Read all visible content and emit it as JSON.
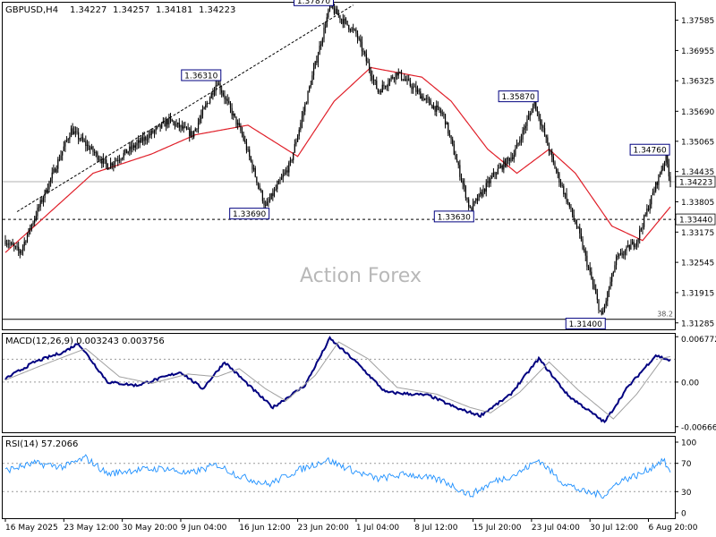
{
  "chart_data": [
    {
      "type": "candlestick",
      "panel": "price",
      "symbol_header": "GBPUSD,H4",
      "ohlc_header": [
        "1.34227",
        "1.34257",
        "1.34181",
        "1.34223"
      ],
      "watermark": "Action Forex",
      "ylim": [
        1.3115,
        1.3795
      ],
      "y_ticks": [
        "1.37585",
        "1.36955",
        "1.36325",
        "1.35690",
        "1.35065",
        "1.34435",
        "1.33805",
        "1.33175",
        "1.32545",
        "1.31915",
        "1.31285"
      ],
      "current_price_label": "1.34223",
      "current_price": 1.34223,
      "hline_price_label": "1.33440",
      "hline_price": 1.3344,
      "fib_label": "38.2",
      "fib_price": 1.3136,
      "x_ticks": [
        "16 May 2025",
        "23 May 12:00",
        "30 May 20:00",
        "9 Jun 04:00",
        "16 Jun 12:00",
        "23 Jun 20:00",
        "1 Jul 04:00",
        "8 Jul 12:00",
        "15 Jul 20:00",
        "23 Jul 04:00",
        "30 Jul 12:00",
        "6 Aug 20:00"
      ],
      "x_tick_bar_index": [
        0,
        40,
        80,
        120,
        160,
        200,
        240,
        280,
        320,
        360,
        400,
        440
      ],
      "bar_count": 456,
      "pivots": [
        {
          "bar": 0,
          "price": 1.33
        },
        {
          "bar": 10,
          "price": 1.3275
        },
        {
          "bar": 45,
          "price": 1.353
        },
        {
          "bar": 70,
          "price": 1.3455
        },
        {
          "bar": 112,
          "price": 1.355
        },
        {
          "bar": 128,
          "price": 1.352
        },
        {
          "bar": 145,
          "price": 1.3631,
          "label": "1.36310"
        },
        {
          "bar": 162,
          "price": 1.352
        },
        {
          "bar": 178,
          "price": 1.3369,
          "label": "1.33690"
        },
        {
          "bar": 195,
          "price": 1.346
        },
        {
          "bar": 222,
          "price": 1.3787,
          "label": "1.37870"
        },
        {
          "bar": 240,
          "price": 1.373
        },
        {
          "bar": 255,
          "price": 1.361
        },
        {
          "bar": 268,
          "price": 1.365
        },
        {
          "bar": 285,
          "price": 1.36
        },
        {
          "bar": 300,
          "price": 1.356
        },
        {
          "bar": 318,
          "price": 1.3363,
          "label": "1.33630"
        },
        {
          "bar": 335,
          "price": 1.344
        },
        {
          "bar": 348,
          "price": 1.348
        },
        {
          "bar": 362,
          "price": 1.3587,
          "label": "1.35870"
        },
        {
          "bar": 375,
          "price": 1.346
        },
        {
          "bar": 392,
          "price": 1.332
        },
        {
          "bar": 408,
          "price": 1.314,
          "label": "1.31400"
        },
        {
          "bar": 418,
          "price": 1.326
        },
        {
          "bar": 432,
          "price": 1.33
        },
        {
          "bar": 452,
          "price": 1.3476,
          "label": "1.34760"
        },
        {
          "bar": 455,
          "price": 1.3422
        }
      ],
      "moving_average": [
        {
          "bar": 0,
          "price": 1.3275
        },
        {
          "bar": 60,
          "price": 1.344
        },
        {
          "bar": 100,
          "price": 1.348
        },
        {
          "bar": 130,
          "price": 1.352
        },
        {
          "bar": 166,
          "price": 1.354
        },
        {
          "bar": 200,
          "price": 1.3475
        },
        {
          "bar": 225,
          "price": 1.359
        },
        {
          "bar": 250,
          "price": 1.366
        },
        {
          "bar": 285,
          "price": 1.364
        },
        {
          "bar": 305,
          "price": 1.359
        },
        {
          "bar": 330,
          "price": 1.349
        },
        {
          "bar": 350,
          "price": 1.344
        },
        {
          "bar": 372,
          "price": 1.349
        },
        {
          "bar": 390,
          "price": 1.344
        },
        {
          "bar": 415,
          "price": 1.333
        },
        {
          "bar": 436,
          "price": 1.33
        },
        {
          "bar": 455,
          "price": 1.337
        }
      ],
      "trendline": [
        {
          "bar": 8,
          "price": 1.336
        },
        {
          "bar": 238,
          "price": 1.379
        }
      ]
    },
    {
      "type": "line",
      "panel": "macd",
      "title": "MACD(12,26,9) 0.003243 0.003756",
      "ylim": [
        -0.0075,
        0.0072
      ],
      "y_ticks": [
        "0.006772",
        "0.00",
        "-0.006667"
      ],
      "levels": [
        0.0,
        0.0034
      ],
      "series": [
        {
          "name": "MACD",
          "points": [
            {
              "bar": 0,
              "v": 0.0005
            },
            {
              "bar": 20,
              "v": 0.003
            },
            {
              "bar": 40,
              "v": 0.0045
            },
            {
              "bar": 50,
              "v": 0.0058
            },
            {
              "bar": 70,
              "v": 0.0
            },
            {
              "bar": 90,
              "v": -0.0005
            },
            {
              "bar": 120,
              "v": 0.0015
            },
            {
              "bar": 135,
              "v": -0.001
            },
            {
              "bar": 150,
              "v": 0.003
            },
            {
              "bar": 170,
              "v": -0.0012
            },
            {
              "bar": 183,
              "v": -0.0038
            },
            {
              "bar": 205,
              "v": -0.0005
            },
            {
              "bar": 222,
              "v": 0.0065
            },
            {
              "bar": 240,
              "v": 0.003
            },
            {
              "bar": 260,
              "v": -0.0015
            },
            {
              "bar": 290,
              "v": -0.002
            },
            {
              "bar": 310,
              "v": -0.004
            },
            {
              "bar": 325,
              "v": -0.005
            },
            {
              "bar": 345,
              "v": -0.002
            },
            {
              "bar": 365,
              "v": 0.0035
            },
            {
              "bar": 385,
              "v": -0.002
            },
            {
              "bar": 410,
              "v": -0.006
            },
            {
              "bar": 425,
              "v": -0.001
            },
            {
              "bar": 445,
              "v": 0.004
            },
            {
              "bar": 455,
              "v": 0.0032
            }
          ]
        },
        {
          "name": "Signal",
          "points": [
            {
              "bar": 0,
              "v": 0.0003
            },
            {
              "bar": 25,
              "v": 0.0025
            },
            {
              "bar": 55,
              "v": 0.005
            },
            {
              "bar": 78,
              "v": 0.0008
            },
            {
              "bar": 100,
              "v": -0.0002
            },
            {
              "bar": 125,
              "v": 0.0012
            },
            {
              "bar": 145,
              "v": 0.0008
            },
            {
              "bar": 160,
              "v": 0.002
            },
            {
              "bar": 178,
              "v": -0.001
            },
            {
              "bar": 192,
              "v": -0.0028
            },
            {
              "bar": 212,
              "v": 0.001
            },
            {
              "bar": 228,
              "v": 0.006
            },
            {
              "bar": 248,
              "v": 0.0035
            },
            {
              "bar": 268,
              "v": -0.0008
            },
            {
              "bar": 295,
              "v": -0.0018
            },
            {
              "bar": 318,
              "v": -0.0038
            },
            {
              "bar": 332,
              "v": -0.0046
            },
            {
              "bar": 352,
              "v": -0.0015
            },
            {
              "bar": 372,
              "v": 0.003
            },
            {
              "bar": 392,
              "v": -0.0012
            },
            {
              "bar": 416,
              "v": -0.0055
            },
            {
              "bar": 432,
              "v": -0.0018
            },
            {
              "bar": 450,
              "v": 0.0036
            },
            {
              "bar": 455,
              "v": 0.0038
            }
          ]
        }
      ]
    },
    {
      "type": "line",
      "panel": "rsi",
      "title": "RSI(14) 57.2066",
      "ylim": [
        0,
        100
      ],
      "y_ticks": [
        "100",
        "70",
        "30",
        "0"
      ],
      "levels": [
        70,
        30
      ],
      "series": [
        {
          "name": "RSI",
          "points": [
            {
              "bar": 0,
              "v": 60
            },
            {
              "bar": 20,
              "v": 70
            },
            {
              "bar": 40,
              "v": 65
            },
            {
              "bar": 55,
              "v": 78
            },
            {
              "bar": 70,
              "v": 55
            },
            {
              "bar": 85,
              "v": 60
            },
            {
              "bar": 110,
              "v": 63
            },
            {
              "bar": 125,
              "v": 55
            },
            {
              "bar": 145,
              "v": 68
            },
            {
              "bar": 160,
              "v": 52
            },
            {
              "bar": 180,
              "v": 40
            },
            {
              "bar": 200,
              "v": 60
            },
            {
              "bar": 220,
              "v": 75
            },
            {
              "bar": 240,
              "v": 58
            },
            {
              "bar": 255,
              "v": 48
            },
            {
              "bar": 275,
              "v": 55
            },
            {
              "bar": 300,
              "v": 45
            },
            {
              "bar": 318,
              "v": 25
            },
            {
              "bar": 335,
              "v": 45
            },
            {
              "bar": 350,
              "v": 55
            },
            {
              "bar": 365,
              "v": 75
            },
            {
              "bar": 380,
              "v": 45
            },
            {
              "bar": 395,
              "v": 30
            },
            {
              "bar": 410,
              "v": 25
            },
            {
              "bar": 420,
              "v": 45
            },
            {
              "bar": 435,
              "v": 55
            },
            {
              "bar": 450,
              "v": 75
            },
            {
              "bar": 455,
              "v": 57
            }
          ]
        }
      ]
    }
  ]
}
